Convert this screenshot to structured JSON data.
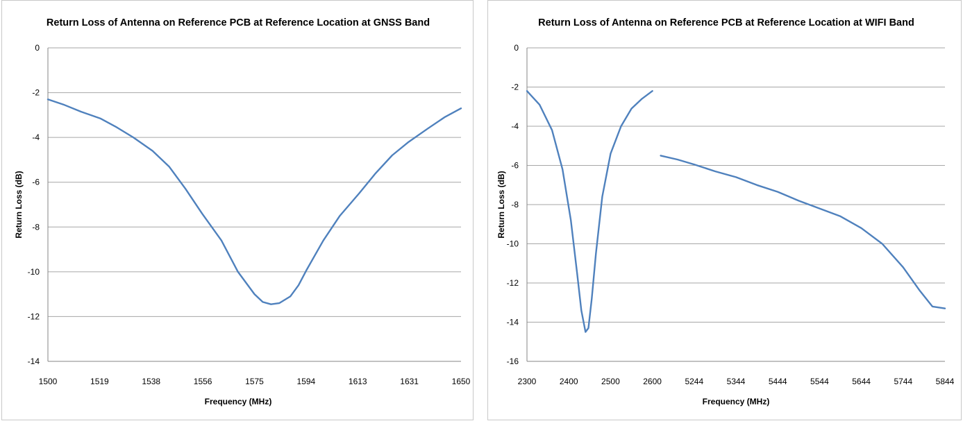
{
  "chart_data": [
    {
      "type": "line",
      "title": "Return Loss of Antenna on Reference PCB at Reference Location at GNSS Band",
      "xlabel": "Frequency (MHz)",
      "ylabel": "Return Loss (dB)",
      "ylim": [
        -14,
        0
      ],
      "yticks": [
        "0",
        "-2",
        "-4",
        "-6",
        "-8",
        "-10",
        "-12",
        "-14"
      ],
      "xticks": [
        "1500",
        "1519",
        "1538",
        "1556",
        "1575",
        "1594",
        "1613",
        "1631",
        "1650"
      ],
      "xlim": [
        1500,
        1650
      ],
      "grid": "horizontal",
      "color": "#4f81bd",
      "series": [
        {
          "x": [
            1500,
            1506,
            1512,
            1519,
            1525,
            1531,
            1538,
            1544,
            1550,
            1556,
            1563,
            1569,
            1575,
            1578,
            1581,
            1584,
            1588,
            1591,
            1594,
            1600,
            1606,
            1613,
            1619,
            1625,
            1631,
            1638,
            1644,
            1650
          ],
          "y": [
            -2.3,
            -2.55,
            -2.85,
            -3.15,
            -3.55,
            -4.0,
            -4.6,
            -5.3,
            -6.3,
            -7.4,
            -8.6,
            -10.0,
            -11.0,
            -11.35,
            -11.45,
            -11.4,
            -11.1,
            -10.6,
            -9.9,
            -8.6,
            -7.5,
            -6.5,
            -5.6,
            -4.8,
            -4.2,
            -3.6,
            -3.1,
            -2.7
          ]
        }
      ]
    },
    {
      "type": "line",
      "title": "Return Loss of Antenna on Reference PCB at Reference Location at WIFI Band",
      "xlabel": "Frequency (MHz)",
      "ylabel": "Return Loss (dB)",
      "ylim": [
        -16,
        0
      ],
      "yticks": [
        "0",
        "-2",
        "-4",
        "-6",
        "-8",
        "-10",
        "-12",
        "-14",
        "-16"
      ],
      "xticks": [
        "2300",
        "2400",
        "2500",
        "2600",
        "5244",
        "5344",
        "5444",
        "5544",
        "5644",
        "5744",
        "5844"
      ],
      "grid": "horizontal",
      "color": "#4f81bd",
      "series": [
        {
          "x": [
            2300,
            2330,
            2360,
            2385,
            2405,
            2420,
            2430,
            2440,
            2447,
            2455,
            2465,
            2480,
            2500,
            2525,
            2550,
            2575,
            2600
          ],
          "y": [
            -2.2,
            -2.9,
            -4.2,
            -6.2,
            -8.8,
            -11.5,
            -13.4,
            -14.5,
            -14.3,
            -12.8,
            -10.5,
            -7.6,
            -5.4,
            -4.0,
            -3.1,
            -2.6,
            -2.2
          ]
        },
        {
          "x": [
            5164,
            5204,
            5244,
            5294,
            5344,
            5394,
            5444,
            5494,
            5544,
            5594,
            5644,
            5694,
            5744,
            5784,
            5814,
            5844
          ],
          "y": [
            -5.5,
            -5.7,
            -5.95,
            -6.3,
            -6.6,
            -7.0,
            -7.35,
            -7.8,
            -8.2,
            -8.6,
            -9.2,
            -10.0,
            -11.2,
            -12.4,
            -13.2,
            -13.3
          ]
        }
      ]
    }
  ]
}
